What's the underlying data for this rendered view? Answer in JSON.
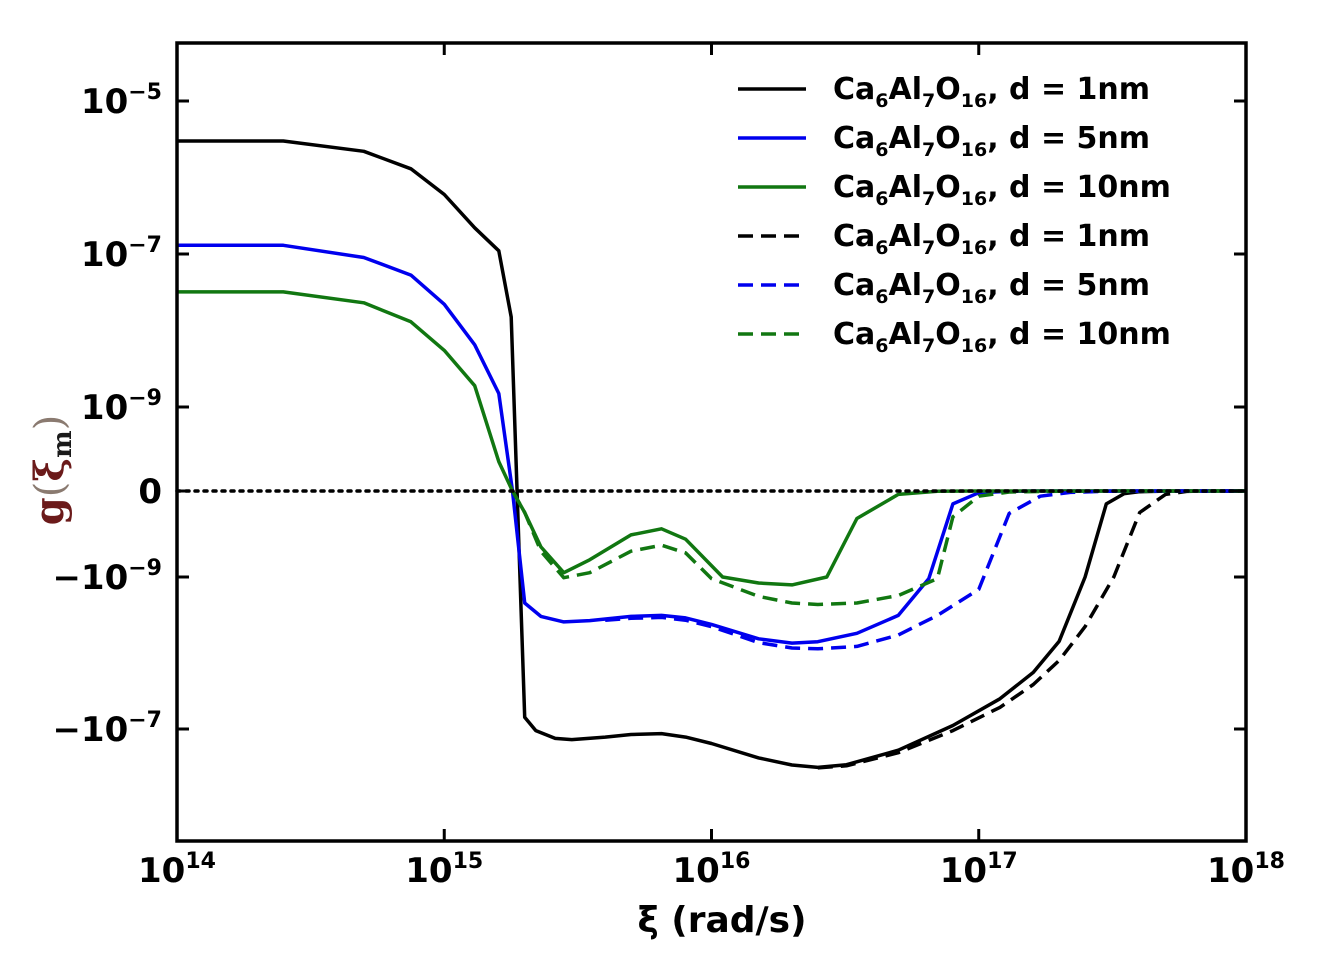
{
  "chart_data": {
    "type": "line",
    "title": "",
    "xlabel": "ξ (rad/s)",
    "ylabel": {
      "main": "g",
      "symbol": "ξ",
      "subscript": "m"
    },
    "xscale": "log",
    "yscale": "symlog",
    "xlim": [
      100000000000000.0,
      1e+18
    ],
    "x_ticks": [
      {
        "base": "10",
        "exp": "14"
      },
      {
        "base": "10",
        "exp": "15"
      },
      {
        "base": "10",
        "exp": "16"
      },
      {
        "base": "10",
        "exp": "17"
      },
      {
        "base": "10",
        "exp": "18"
      }
    ],
    "y_ticks": [
      {
        "base": "10",
        "exp": "−5",
        "value": 1e-05
      },
      {
        "base": "10",
        "exp": "−7",
        "value": 1e-07
      },
      {
        "base": "10",
        "exp": "−9",
        "value": 1e-09
      },
      {
        "base": "0",
        "exp": "",
        "value": 0
      },
      {
        "base": "−10",
        "exp": "−9",
        "value": -1e-09
      },
      {
        "base": "−10",
        "exp": "−7",
        "value": -1e-07
      }
    ],
    "zero_line": {
      "style": "dotted",
      "color": "#000000"
    },
    "legend_position": "top-right",
    "series": [
      {
        "name": "Ca6Al7O16, d = 1nm",
        "label_parts": [
          "Ca",
          "6",
          "Al",
          "7",
          "O",
          "16",
          ", d = 1nm"
        ],
        "color": "#000000",
        "dash": "solid",
        "x": [
          100000000000000.0,
          250000000000000.0,
          500000000000000.0,
          750000000000000.0,
          1000000000000000.0,
          1300000000000000.0,
          1600000000000000.0,
          1780000000000000.0,
          2000000000000000.0,
          2200000000000000.0,
          2600000000000000.0,
          3000000000000000.0,
          4000000000000000.0,
          5000000000000000.0,
          6500000000000000.0,
          8000000000000000.0,
          1e+16,
          1.5e+16,
          2e+16,
          2.5e+16,
          3.2e+16,
          5e+16,
          8e+16,
          1.2e+17,
          1.6e+17,
          2e+17,
          2.5e+17,
          3e+17,
          3.5e+17,
          4e+17,
          5e+17,
          7e+17,
          1e+18
        ],
        "y": [
          3e-06,
          3e-06,
          2.2e-06,
          1.3e-06,
          6e-07,
          2.2e-07,
          1.1e-07,
          1.5e-08,
          -7e-08,
          -1.05e-07,
          -1.33e-07,
          -1.38e-07,
          -1.28e-07,
          -1.18e-07,
          -1.15e-07,
          -1.28e-07,
          -1.55e-07,
          -2.4e-07,
          -2.98e-07,
          -3.2e-07,
          -2.95e-07,
          -1.9e-07,
          -9e-08,
          -4e-08,
          -1.8e-08,
          -7e-09,
          -1e-09,
          -1.5e-10,
          -3e-11,
          -8e-12,
          -1e-12,
          0,
          0
        ]
      },
      {
        "name": "Ca6Al7O16, d = 5nm",
        "label_parts": [
          "Ca",
          "6",
          "Al",
          "7",
          "O",
          "16",
          ", d = 5nm"
        ],
        "color": "#0000ee",
        "dash": "solid",
        "x": [
          100000000000000.0,
          250000000000000.0,
          500000000000000.0,
          750000000000000.0,
          1000000000000000.0,
          1300000000000000.0,
          1600000000000000.0,
          1800000000000000.0,
          2000000000000000.0,
          2300000000000000.0,
          2800000000000000.0,
          3500000000000000.0,
          5000000000000000.0,
          6500000000000000.0,
          8000000000000000.0,
          1e+16,
          1.5e+16,
          2e+16,
          2.5e+16,
          3.5e+16,
          5e+16,
          6.5e+16,
          8e+16,
          1e+17,
          1.3e+17,
          1.6e+17,
          2e+17,
          3e+17,
          5e+17,
          1e+18
        ],
        "y": [
          1.3e-07,
          1.3e-07,
          9e-08,
          5.3e-08,
          2.2e-08,
          6.5e-09,
          1.5e-09,
          0,
          -2.2e-09,
          -3.3e-09,
          -3.9e-09,
          -3.75e-09,
          -3.3e-09,
          -3.2e-09,
          -3.45e-09,
          -4.2e-09,
          -6.5e-09,
          -7.4e-09,
          -7.1e-09,
          -5.5e-09,
          -3.2e-09,
          -1.05e-09,
          -1.5e-10,
          -2e-11,
          -3e-12,
          -5e-13,
          0,
          0,
          0,
          0
        ]
      },
      {
        "name": "Ca6Al7O16, d = 10nm",
        "label_parts": [
          "Ca",
          "6",
          "Al",
          "7",
          "O",
          "16",
          ", d = 10nm"
        ],
        "color": "#117711",
        "dash": "solid",
        "x": [
          100000000000000.0,
          250000000000000.0,
          500000000000000.0,
          750000000000000.0,
          1000000000000000.0,
          1300000000000000.0,
          1600000000000000.0,
          1800000000000000.0,
          2000000000000000.0,
          2300000000000000.0,
          2800000000000000.0,
          3500000000000000.0,
          5000000000000000.0,
          6500000000000000.0,
          8000000000000000.0,
          1.1e+16,
          1.5e+16,
          2e+16,
          2.7e+16,
          3.5e+16,
          5e+16,
          7e+16,
          1e+17,
          1.5e+17,
          3e+17,
          1e+18
        ],
        "y": [
          3.2e-08,
          3.2e-08,
          2.3e-08,
          1.3e-08,
          5.5e-09,
          1.9e-09,
          3.5e-10,
          0,
          -2.5e-10,
          -6.5e-10,
          -9.5e-10,
          -8e-10,
          -5.1e-10,
          -4.4e-10,
          -5.6e-10,
          -1e-09,
          -1.2e-09,
          -1.27e-09,
          -1e-09,
          -3.2e-10,
          -4e-11,
          -4e-12,
          0,
          0,
          0,
          0
        ]
      },
      {
        "name": "Ca6Al7O16, d = 1nm",
        "label_parts": [
          "Ca",
          "6",
          "Al",
          "7",
          "O",
          "16",
          ", d = 1nm"
        ],
        "color": "#000000",
        "dash": "dashed",
        "x": [
          2.5e+16,
          3.2e+16,
          5e+16,
          8e+16,
          1.2e+17,
          1.6e+17,
          2e+17,
          2.5e+17,
          3.2e+17,
          4e+17,
          5e+17,
          6e+17,
          7e+17,
          8e+17,
          1e+18
        ],
        "y": [
          -3.25e-07,
          -3.05e-07,
          -2.05e-07,
          -1.05e-07,
          -5.2e-08,
          -2.6e-08,
          -1.25e-08,
          -4.5e-09,
          -1e-09,
          -2.5e-10,
          -4e-11,
          -5e-12,
          -8e-13,
          0,
          0
        ]
      },
      {
        "name": "Ca6Al7O16, d = 5nm",
        "label_parts": [
          "Ca",
          "6",
          "Al",
          "7",
          "O",
          "16",
          ", d = 5nm"
        ],
        "color": "#0000ee",
        "dash": "dashed",
        "x": [
          4000000000000000.0,
          5000000000000000.0,
          6500000000000000.0,
          8000000000000000.0,
          1e+16,
          1.5e+16,
          2e+16,
          2.5e+16,
          3.5e+16,
          5e+16,
          7e+16,
          1e+17,
          1.3e+17,
          1.7e+17,
          2.2e+17,
          3e+17,
          4e+17,
          6e+17,
          1e+18
        ],
        "y": [
          -3.7e-09,
          -3.5e-09,
          -3.4e-09,
          -3.7e-09,
          -4.5e-09,
          -7.3e-09,
          -8.6e-09,
          -8.8e-09,
          -8.2e-09,
          -5.8e-09,
          -3.2e-09,
          -1.45e-09,
          -2.6e-10,
          -6e-11,
          -1.6e-11,
          -3e-12,
          -5e-13,
          0,
          0
        ]
      },
      {
        "name": "Ca6Al7O16, d = 10nm",
        "label_parts": [
          "Ca",
          "6",
          "Al",
          "7",
          "O",
          "16",
          ", d = 10nm"
        ],
        "color": "#117711",
        "dash": "dashed",
        "x": [
          1800000000000000.0,
          2000000000000000.0,
          2300000000000000.0,
          2800000000000000.0,
          3500000000000000.0,
          5000000000000000.0,
          6500000000000000.0,
          8000000000000000.0,
          1e+16,
          1.5e+16,
          2e+16,
          2.5e+16,
          3.5e+16,
          5e+16,
          7e+16,
          8e+16,
          1e+17,
          1.3e+17,
          2e+17,
          3e+17,
          5e+17,
          1e+18
        ],
        "y": [
          0,
          -2.5e-10,
          -7e-10,
          -1.02e-09,
          -9.5e-10,
          -7e-10,
          -6.3e-10,
          -7.2e-10,
          -1.05e-09,
          -1.8e-09,
          -2.2e-09,
          -2.3e-09,
          -2.2e-09,
          -1.75e-09,
          -1.05e-09,
          -3e-10,
          -6e-11,
          -1.2e-11,
          -2e-12,
          -3e-13,
          0,
          0
        ]
      }
    ]
  }
}
